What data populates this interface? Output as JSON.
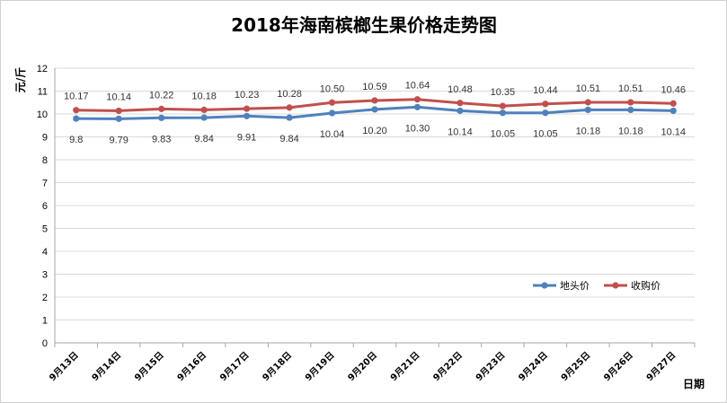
{
  "chart_data": {
    "type": "line",
    "title": "2018年海南槟榔生果价格走势图",
    "xlabel": "日期",
    "ylabel": "元/斤",
    "ylim": [
      0,
      12
    ],
    "yticks": [
      "0",
      "1",
      "2",
      "3",
      "4",
      "5",
      "6",
      "7",
      "8",
      "9",
      "10",
      "11",
      "12"
    ],
    "grid": true,
    "legend_position": "right",
    "categories": [
      "9月13日",
      "9月14日",
      "9月15日",
      "9月16日",
      "9月17日",
      "9月18日",
      "9月19日",
      "9月20日",
      "9月21日",
      "9月22日",
      "9月23日",
      "9月24日",
      "9月25日",
      "9月26日",
      "9月27日"
    ],
    "series": [
      {
        "name": "地头价",
        "color": "#4f81bd",
        "values": [
          9.8,
          9.79,
          9.83,
          9.84,
          9.91,
          9.84,
          10.04,
          10.2,
          10.3,
          10.14,
          10.05,
          10.05,
          10.18,
          10.18,
          10.14
        ],
        "labels": [
          "9.8",
          "9.79",
          "9.83",
          "9.84",
          "9.91",
          "9.84",
          "10.04",
          "10.20",
          "10.30",
          "10.14",
          "10.05",
          "10.05",
          "10.18",
          "10.18",
          "10.14"
        ],
        "label_position": "below"
      },
      {
        "name": "收购价",
        "color": "#c0504d",
        "values": [
          10.17,
          10.14,
          10.22,
          10.18,
          10.23,
          10.28,
          10.5,
          10.59,
          10.64,
          10.48,
          10.35,
          10.44,
          10.51,
          10.51,
          10.46
        ],
        "labels": [
          "10.17",
          "10.14",
          "10.22",
          "10.18",
          "10.23",
          "10.28",
          "10.50",
          "10.59",
          "10.64",
          "10.48",
          "10.35",
          "10.44",
          "10.51",
          "10.51",
          "10.46"
        ],
        "label_position": "above"
      }
    ]
  }
}
